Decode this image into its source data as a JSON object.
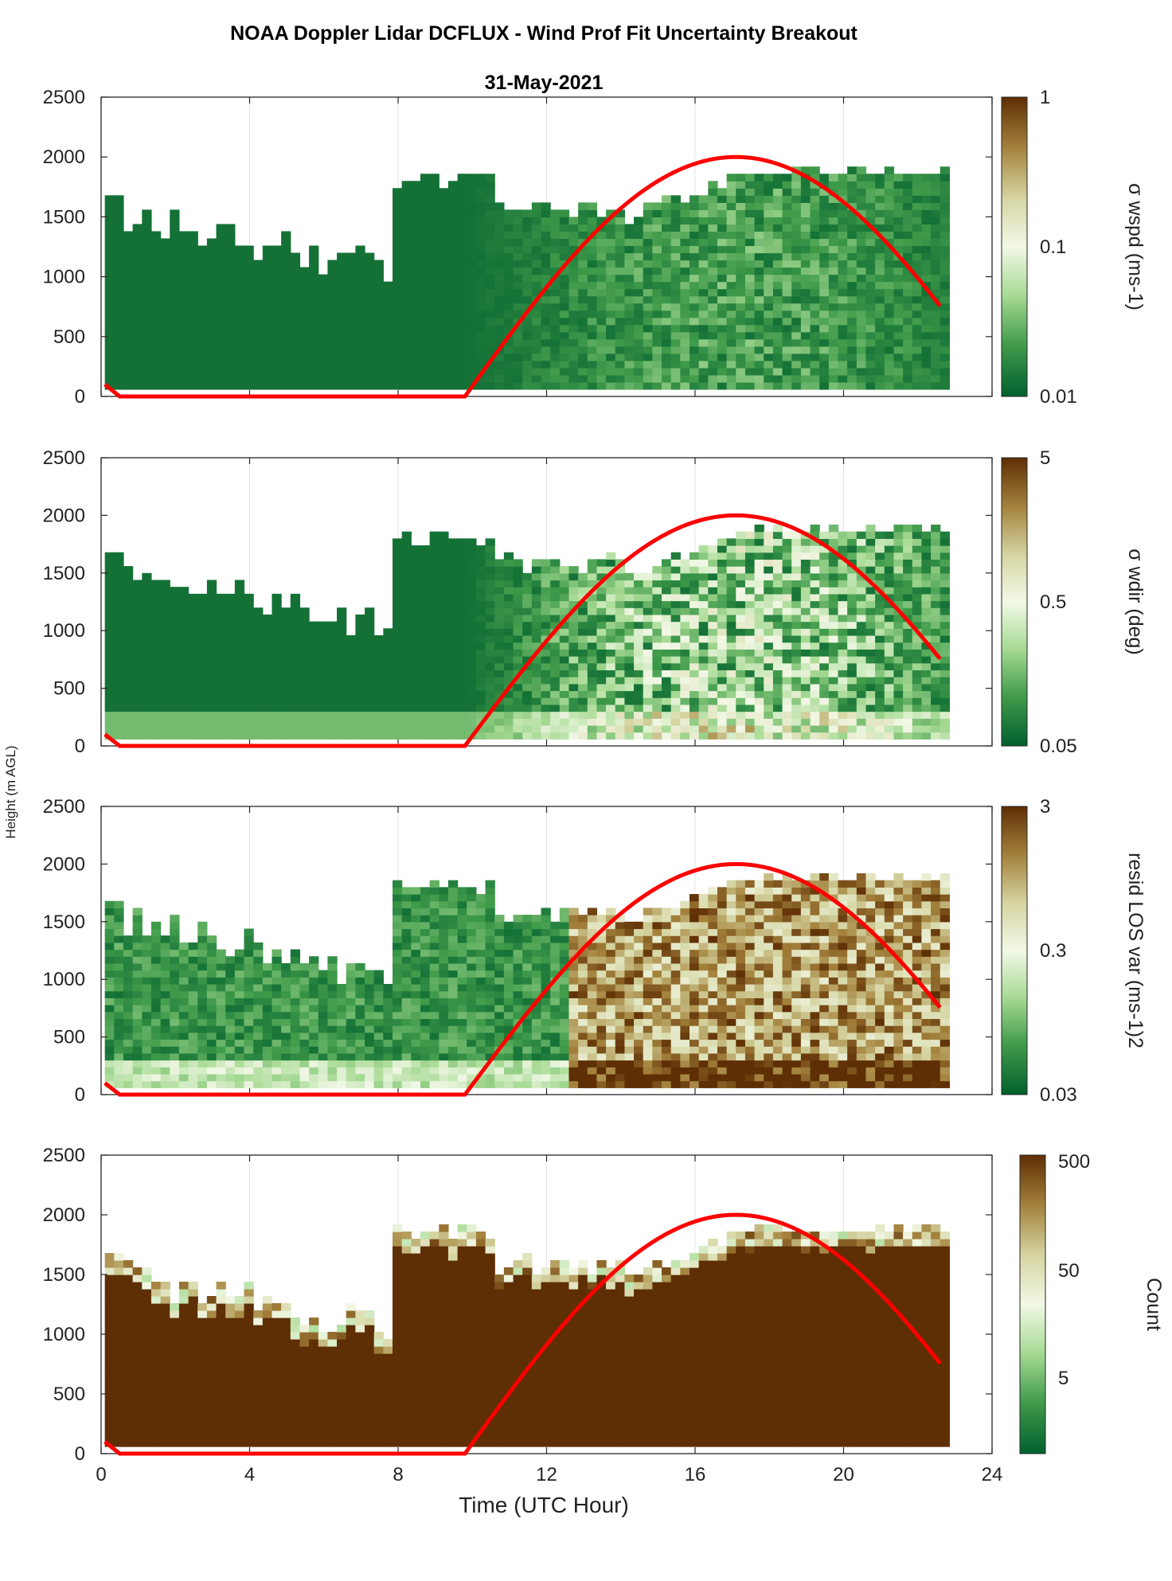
{
  "title": "NOAA Doppler Lidar DCFLUX - Wind Prof Fit Uncertainty Breakout",
  "subtitle": "31-May-2021",
  "shared_ylabel": "Height (m AGL)",
  "xlabel": "Time (UTC Hour)",
  "colors": {
    "curve": "#ff0000",
    "colormap": [
      "#02602e",
      "#3f9a4a",
      "#a9db96",
      "#f2f8e6",
      "#d6d6a4",
      "#a4823c",
      "#5e2e04"
    ]
  },
  "chart_data": [
    {
      "type": "heatmap",
      "panel": "sigma-wspd",
      "x_ticks": [
        0,
        4,
        8,
        12,
        16,
        20,
        24
      ],
      "y_ticks": [
        0,
        500,
        1000,
        1500,
        2000,
        2500
      ],
      "xlim": [
        0,
        24
      ],
      "ylim": [
        0,
        2500
      ],
      "colorbar_label": "σ wspd (ms-1)",
      "colorbar_scale": "log",
      "colorbar_range": [
        0.01,
        1
      ],
      "colorbar_ticks": [
        "1",
        "0.1",
        "0.01"
      ],
      "overlay_curve": {
        "x": [
          0.1,
          0.5,
          9.8,
          17.1,
          22.7
        ],
        "y": [
          100,
          0,
          0,
          2000,
          640
        ]
      }
    },
    {
      "type": "heatmap",
      "panel": "sigma-wdir",
      "x_ticks": [
        0,
        4,
        8,
        12,
        16,
        20,
        24
      ],
      "y_ticks": [
        0,
        500,
        1000,
        1500,
        2000,
        2500
      ],
      "xlim": [
        0,
        24
      ],
      "ylim": [
        0,
        2500
      ],
      "colorbar_label": "σ wdir (deg)",
      "colorbar_scale": "log",
      "colorbar_range": [
        0.05,
        5
      ],
      "colorbar_ticks": [
        "5",
        "0.5",
        "0.05"
      ],
      "overlay_curve": {
        "x": [
          0.1,
          0.5,
          9.8,
          17.1,
          22.7
        ],
        "y": [
          100,
          0,
          0,
          2000,
          640
        ]
      }
    },
    {
      "type": "heatmap",
      "panel": "resid-los-var",
      "x_ticks": [
        0,
        4,
        8,
        12,
        16,
        20,
        24
      ],
      "y_ticks": [
        0,
        500,
        1000,
        1500,
        2000,
        2500
      ],
      "xlim": [
        0,
        24
      ],
      "ylim": [
        0,
        2500
      ],
      "colorbar_label": "resid LOS var (ms-1)2",
      "colorbar_scale": "log",
      "colorbar_range": [
        0.03,
        3
      ],
      "colorbar_ticks": [
        "3",
        "0.3",
        "0.03"
      ],
      "overlay_curve": {
        "x": [
          0.1,
          0.5,
          9.8,
          17.1,
          22.7
        ],
        "y": [
          100,
          0,
          0,
          2000,
          640
        ]
      }
    },
    {
      "type": "heatmap",
      "panel": "count",
      "x_ticks": [
        0,
        4,
        8,
        12,
        16,
        20,
        24
      ],
      "y_ticks": [
        0,
        500,
        1000,
        1500,
        2000,
        2500
      ],
      "xlim": [
        0,
        24
      ],
      "ylim": [
        0,
        2500
      ],
      "colorbar_label": "Count",
      "colorbar_scale": "log",
      "colorbar_range": [
        1,
        500
      ],
      "colorbar_ticks": [
        "500",
        "50",
        "5"
      ],
      "overlay_curve": {
        "x": [
          0.1,
          0.5,
          9.8,
          17.1,
          22.7
        ],
        "y": [
          100,
          0,
          0,
          2000,
          640
        ]
      }
    }
  ]
}
